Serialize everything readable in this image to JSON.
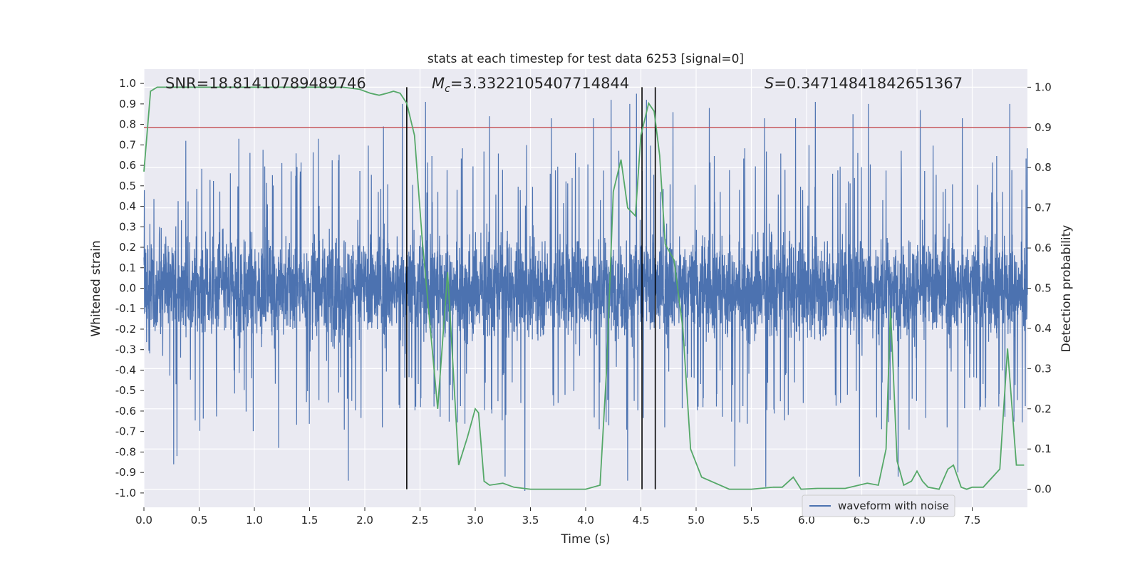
{
  "chart_data": {
    "type": "line",
    "title": "stats at each timestep for test data 6253 [signal=0]",
    "xlabel": "Time (s)",
    "ylabel_left": "Whitened strain",
    "ylabel_right": "Detection probability",
    "xlim": [
      0.0,
      8.0
    ],
    "ylim_left": [
      -1.07,
      1.07
    ],
    "ylim_right": [
      -0.045,
      1.045
    ],
    "x_ticks": [
      "0.0",
      "0.5",
      "1.0",
      "1.5",
      "2.0",
      "2.5",
      "3.0",
      "3.5",
      "4.0",
      "4.5",
      "5.0",
      "5.5",
      "6.0",
      "6.5",
      "7.0",
      "7.5"
    ],
    "y_left_ticks": [
      "1.0",
      "0.9",
      "0.8",
      "0.7",
      "0.6",
      "0.5",
      "0.4",
      "0.3",
      "0.2",
      "0.1",
      "0.0",
      "-0.1",
      "-0.2",
      "-0.3",
      "-0.4",
      "-0.5",
      "-0.6",
      "-0.7",
      "-0.8",
      "-0.9",
      "-1.0"
    ],
    "y_right_ticks": [
      "1.0",
      "0.9",
      "0.8",
      "0.7",
      "0.6",
      "0.5",
      "0.4",
      "0.3",
      "0.2",
      "0.1",
      "0.0"
    ],
    "grid": true,
    "legend": {
      "placement": "lower right",
      "entries": [
        "waveform with noise"
      ]
    },
    "annotations": {
      "snr": "SNR=18.81410789489746",
      "mc_symbol": "M",
      "mc_sub": "c",
      "mc_value": "=3.3322105407714844",
      "s_symbol": "S",
      "s_value": "=0.34714841842651367"
    },
    "threshold": {
      "axis": "right",
      "value": 0.9,
      "color": "#c44e52"
    },
    "vlines": [
      2.38,
      4.51,
      4.63
    ],
    "series": [
      {
        "name": "waveform with noise",
        "axis": "left",
        "color": "#4c72b0",
        "sampling": "dense noise, approx. 2048 samples/s",
        "typical_envelope": [
          -0.4,
          0.4
        ],
        "peak_times": [
          0.38,
          0.86,
          1.58,
          1.85,
          2.17,
          2.34,
          2.55,
          3.13,
          3.69,
          4.07,
          4.23,
          4.4,
          4.46,
          4.55,
          4.79,
          5.12,
          5.62,
          5.9,
          6.08,
          6.42,
          6.56,
          7.03,
          7.41,
          7.84
        ],
        "peak_values": [
          0.72,
          0.73,
          0.73,
          0.84,
          0.79,
          0.9,
          0.91,
          0.84,
          0.83,
          0.83,
          0.92,
          0.9,
          0.95,
          0.92,
          0.86,
          0.88,
          0.83,
          0.83,
          0.91,
          0.85,
          0.9,
          0.87,
          0.83,
          0.9
        ],
        "trough_times": [
          0.27,
          0.3,
          1.22,
          1.85,
          2.31,
          3.27,
          3.45,
          4.21,
          4.38,
          5.35,
          5.63,
          6.48,
          6.83,
          7.37
        ],
        "trough_values": [
          -0.86,
          -0.82,
          -0.78,
          -0.94,
          -0.57,
          -0.92,
          -0.99,
          -0.67,
          -0.94,
          -0.87,
          -0.97,
          -0.92,
          -0.92,
          -0.9
        ]
      },
      {
        "name": "",
        "axis": "right",
        "color": "#55a868",
        "x": [
          0.0,
          0.06,
          0.12,
          0.5,
          1.0,
          1.5,
          1.8,
          1.95,
          2.05,
          2.13,
          2.2,
          2.26,
          2.32,
          2.38,
          2.45,
          2.52,
          2.6,
          2.66,
          2.75,
          2.85,
          2.93,
          3.0,
          3.03,
          3.08,
          3.13,
          3.25,
          3.35,
          3.5,
          3.7,
          4.0,
          4.13,
          4.19,
          4.25,
          4.32,
          4.38,
          4.45,
          4.5,
          4.57,
          4.62,
          4.67,
          4.72,
          4.8,
          4.88,
          4.95,
          5.05,
          5.3,
          5.5,
          5.7,
          5.78,
          5.88,
          5.95,
          6.1,
          6.35,
          6.55,
          6.65,
          6.72,
          6.76,
          6.82,
          6.88,
          6.95,
          7.0,
          7.05,
          7.1,
          7.2,
          7.28,
          7.33,
          7.4,
          7.45,
          7.5,
          7.6,
          7.75,
          7.82,
          7.9,
          7.97
        ],
        "y": [
          0.79,
          0.99,
          1.0,
          1.0,
          1.0,
          1.0,
          1.0,
          0.995,
          0.985,
          0.98,
          0.985,
          0.99,
          0.985,
          0.96,
          0.88,
          0.62,
          0.38,
          0.2,
          0.54,
          0.06,
          0.13,
          0.2,
          0.19,
          0.02,
          0.01,
          0.015,
          0.005,
          0.0,
          0.0,
          0.0,
          0.01,
          0.3,
          0.74,
          0.82,
          0.7,
          0.68,
          0.88,
          0.96,
          0.94,
          0.83,
          0.61,
          0.57,
          0.4,
          0.1,
          0.03,
          0.0,
          0.0,
          0.005,
          0.005,
          0.03,
          0.0,
          0.002,
          0.002,
          0.015,
          0.01,
          0.1,
          0.45,
          0.07,
          0.01,
          0.02,
          0.045,
          0.02,
          0.005,
          0.0,
          0.05,
          0.06,
          0.005,
          0.0,
          0.005,
          0.005,
          0.05,
          0.35,
          0.06,
          0.06
        ]
      }
    ]
  }
}
